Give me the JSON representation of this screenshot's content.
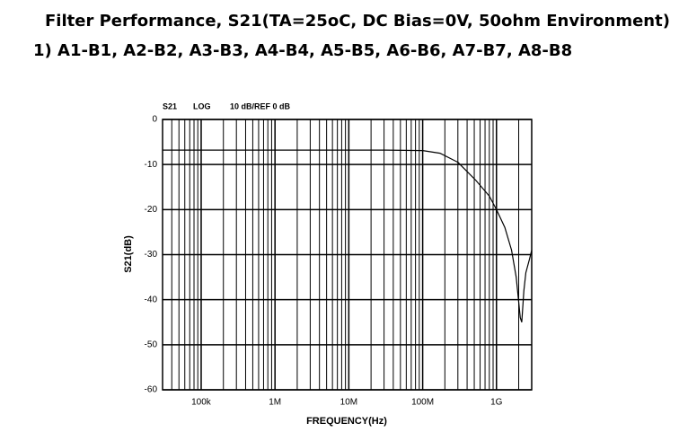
{
  "chart_data": {
    "type": "line",
    "title": "Filter Performance, S21(TA=25oC, DC Bias=0V, 50ohm Environment)",
    "subtitle": "1) A1-B1, A2-B2, A3-B3, A4-B4, A5-B5, A6-B6, A7-B7, A8-B8",
    "annotations": [
      "S21",
      "LOG",
      "10 dB/REF 0 dB"
    ],
    "x_label": "FREQUENCY(Hz)",
    "y_label": "S21(dB)",
    "log_x": true,
    "grid": true,
    "xlim": [
      30000,
      3000000000
    ],
    "ylim": [
      -60,
      0
    ],
    "xticks": [
      {
        "value": 100000,
        "label": "100k"
      },
      {
        "value": 1000000,
        "label": "1M"
      },
      {
        "value": 10000000,
        "label": "10M"
      },
      {
        "value": 100000000,
        "label": "100M"
      },
      {
        "value": 1000000000,
        "label": "1G"
      }
    ],
    "yticks": [
      0,
      -10,
      -20,
      -30,
      -40,
      -50,
      -60
    ],
    "x": [
      30000,
      1000000,
      10000000,
      32000000,
      100000000,
      172000000,
      300000000,
      525000000,
      800000000,
      1000000000,
      1300000000,
      1600000000,
      1850000000,
      2100000000,
      2200000000,
      2350000000,
      2500000000,
      2800000000,
      3000000000
    ],
    "series": [
      {
        "color": "#000000",
        "values": [
          -6.8,
          -6.8,
          -6.8,
          -6.8,
          -6.9,
          -7.5,
          -9.5,
          -13.5,
          -17,
          -20,
          -24,
          -29,
          -35,
          -44,
          -45,
          -38,
          -34,
          -31,
          -29
        ]
      }
    ]
  }
}
